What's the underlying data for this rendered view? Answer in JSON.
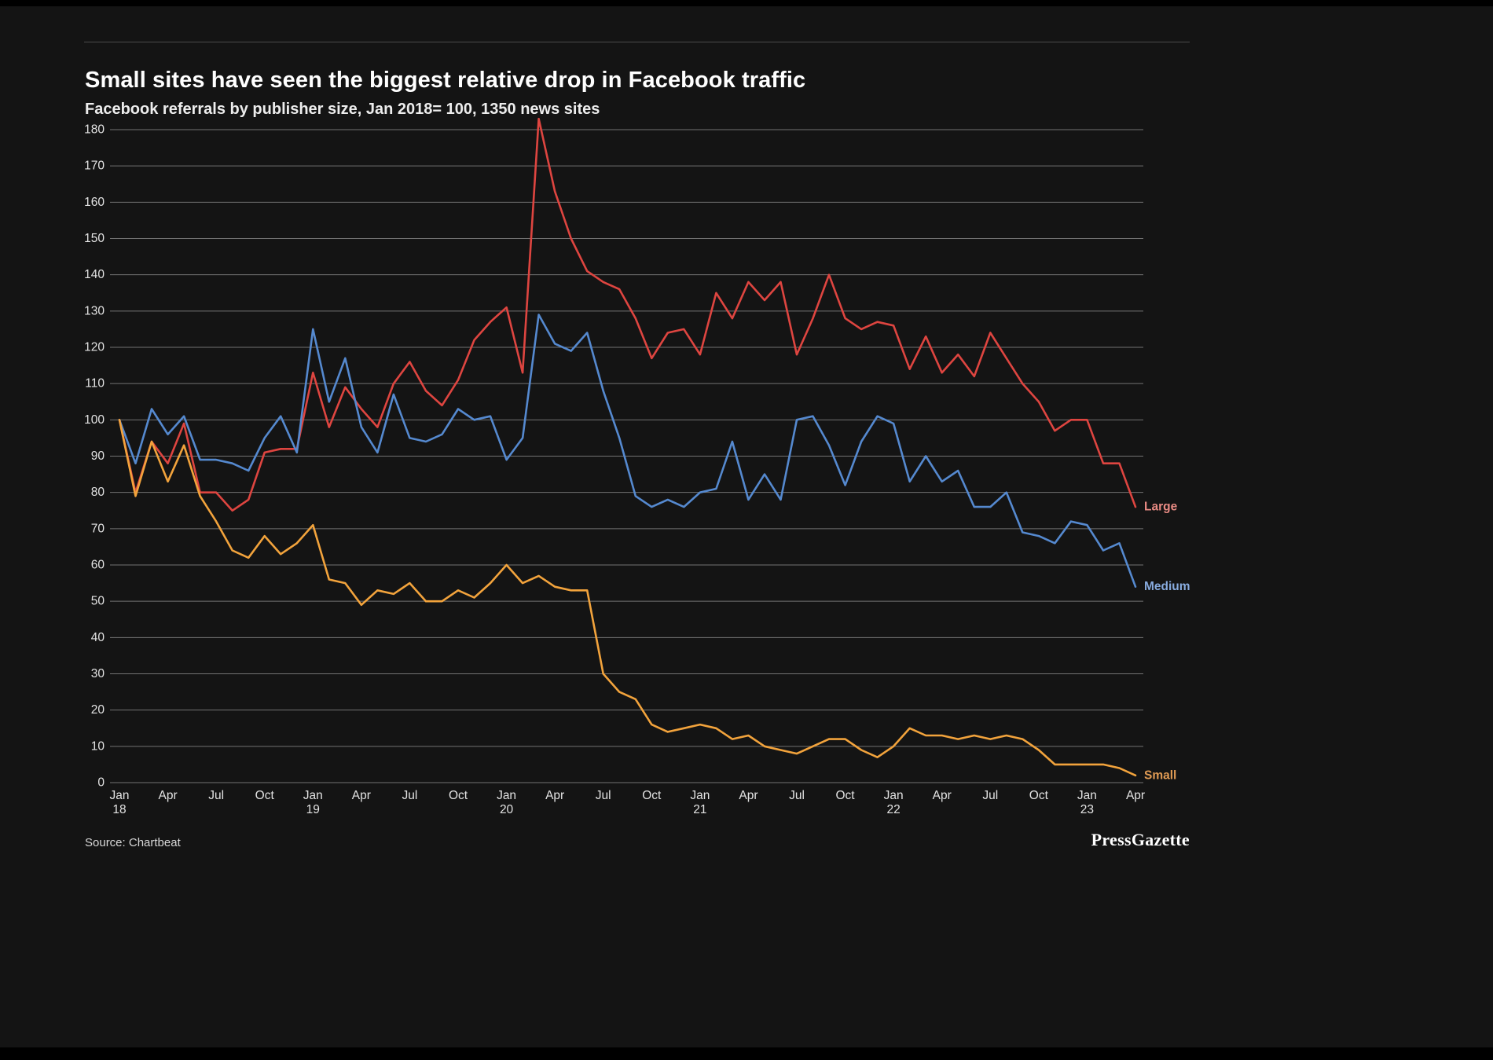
{
  "footer": {
    "source": "Source: Chartbeat",
    "brand": "PressGazette"
  },
  "chart_data": {
    "type": "line",
    "title": "Small sites have seen the biggest relative drop in Facebook traffic",
    "subtitle": "Facebook referrals by publisher size, Jan 2018= 100, 1350 news sites",
    "x_range": [
      "Jan 2018",
      "Apr 2023"
    ],
    "x_unit": "month",
    "ylim": [
      0,
      180
    ],
    "grid": true,
    "legend_position": "line-end-labels-right",
    "y_ticks": [
      0,
      10,
      20,
      30,
      40,
      50,
      60,
      70,
      80,
      90,
      100,
      110,
      120,
      130,
      140,
      150,
      160,
      170,
      180
    ],
    "x_ticks": [
      {
        "m": 0,
        "label": "Jan",
        "year": "18"
      },
      {
        "m": 3,
        "label": "Apr"
      },
      {
        "m": 6,
        "label": "Jul"
      },
      {
        "m": 9,
        "label": "Oct"
      },
      {
        "m": 12,
        "label": "Jan",
        "year": "19"
      },
      {
        "m": 15,
        "label": "Apr"
      },
      {
        "m": 18,
        "label": "Jul"
      },
      {
        "m": 21,
        "label": "Oct"
      },
      {
        "m": 24,
        "label": "Jan",
        "year": "20"
      },
      {
        "m": 27,
        "label": "Apr"
      },
      {
        "m": 30,
        "label": "Jul"
      },
      {
        "m": 33,
        "label": "Oct"
      },
      {
        "m": 36,
        "label": "Jan",
        "year": "21"
      },
      {
        "m": 39,
        "label": "Apr"
      },
      {
        "m": 42,
        "label": "Jul"
      },
      {
        "m": 45,
        "label": "Oct"
      },
      {
        "m": 48,
        "label": "Jan",
        "year": "22"
      },
      {
        "m": 51,
        "label": "Apr"
      },
      {
        "m": 54,
        "label": "Jul"
      },
      {
        "m": 57,
        "label": "Oct"
      },
      {
        "m": 60,
        "label": "Jan",
        "year": "23"
      },
      {
        "m": 63,
        "label": "Apr"
      }
    ],
    "style": {
      "background": "#141414",
      "grid_color": "#cfcfcf",
      "axis_text_color": "#e3e3e3"
    },
    "series": [
      {
        "name": "Large",
        "color": "#de4540",
        "label_color": "#e98b84",
        "values": [
          100,
          80,
          94,
          88,
          99,
          80,
          80,
          75,
          78,
          91,
          92,
          92,
          113,
          98,
          109,
          103,
          98,
          110,
          116,
          108,
          104,
          111,
          122,
          127,
          131,
          113,
          183,
          163,
          150,
          141,
          138,
          136,
          128,
          117,
          124,
          125,
          118,
          135,
          128,
          138,
          133,
          138,
          118,
          128,
          140,
          128,
          125,
          127,
          126,
          114,
          123,
          113,
          118,
          112,
          124,
          117,
          110,
          105,
          97,
          100,
          100,
          88,
          88,
          76
        ]
      },
      {
        "name": "Medium",
        "color": "#5589cf",
        "label_color": "#87aadd",
        "values": [
          100,
          88,
          103,
          96,
          101,
          89,
          89,
          88,
          86,
          95,
          101,
          91,
          125,
          105,
          117,
          98,
          91,
          107,
          95,
          94,
          96,
          103,
          100,
          101,
          89,
          95,
          129,
          121,
          119,
          124,
          108,
          95,
          79,
          76,
          78,
          76,
          80,
          81,
          94,
          78,
          85,
          78,
          100,
          101,
          93,
          82,
          94,
          101,
          99,
          83,
          90,
          83,
          86,
          76,
          76,
          80,
          69,
          68,
          66,
          72,
          71,
          64,
          66,
          54
        ]
      },
      {
        "name": "Small",
        "color": "#f2a33c",
        "label_color": "#e09b54",
        "values": [
          100,
          79,
          94,
          83,
          93,
          79,
          72,
          64,
          62,
          68,
          63,
          66,
          71,
          56,
          55,
          49,
          53,
          52,
          55,
          50,
          50,
          53,
          51,
          55,
          60,
          55,
          57,
          54,
          53,
          53,
          30,
          25,
          23,
          16,
          14,
          15,
          16,
          15,
          12,
          13,
          10,
          9,
          8,
          10,
          12,
          12,
          9,
          7,
          10,
          15,
          13,
          13,
          12,
          13,
          12,
          13,
          12,
          9,
          5,
          5,
          5,
          5,
          4,
          2
        ]
      }
    ]
  }
}
